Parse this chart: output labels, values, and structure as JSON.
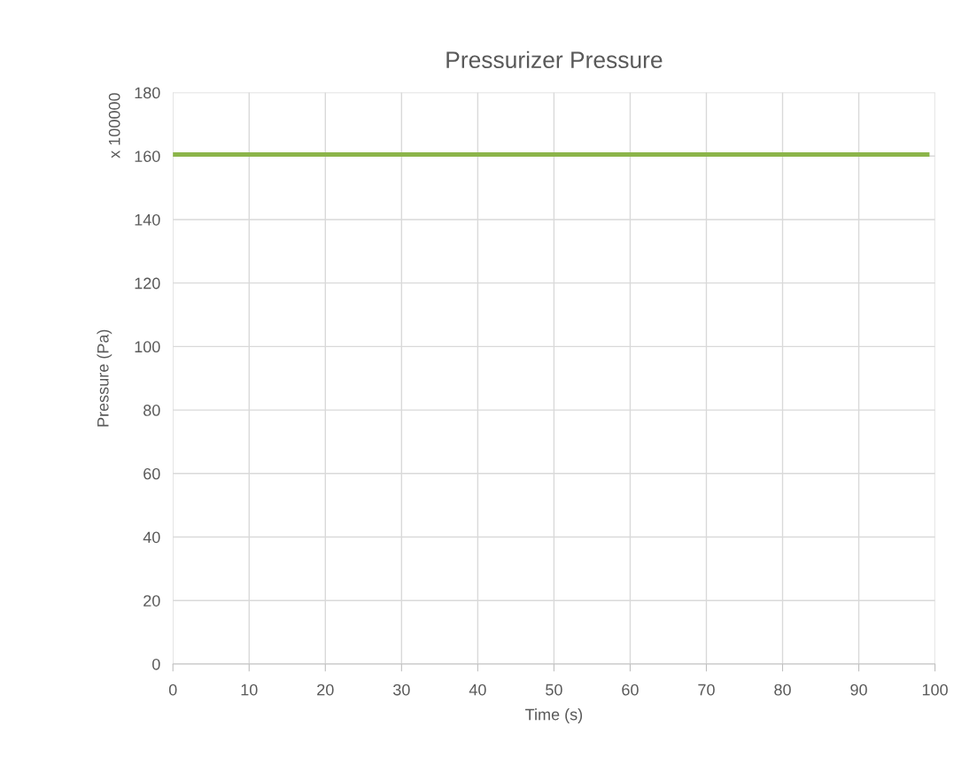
{
  "chart_data": {
    "type": "line",
    "title": "Pressurizer Pressure",
    "xlabel": "Time (s)",
    "ylabel": "Pressure (Pa)",
    "annotations": [
      "x 100000"
    ],
    "x": [
      0,
      99
    ],
    "series": [
      {
        "color": "#8cb54a",
        "values": [
          160.5,
          160.5
        ]
      }
    ],
    "xlim": [
      0,
      100
    ],
    "xticks": [
      0,
      10,
      20,
      30,
      40,
      50,
      60,
      70,
      80,
      90,
      100
    ],
    "ylim": [
      0,
      180
    ],
    "yticks": [
      0,
      20,
      40,
      60,
      80,
      100,
      120,
      140,
      160,
      180
    ],
    "grid": true,
    "legend": false
  }
}
